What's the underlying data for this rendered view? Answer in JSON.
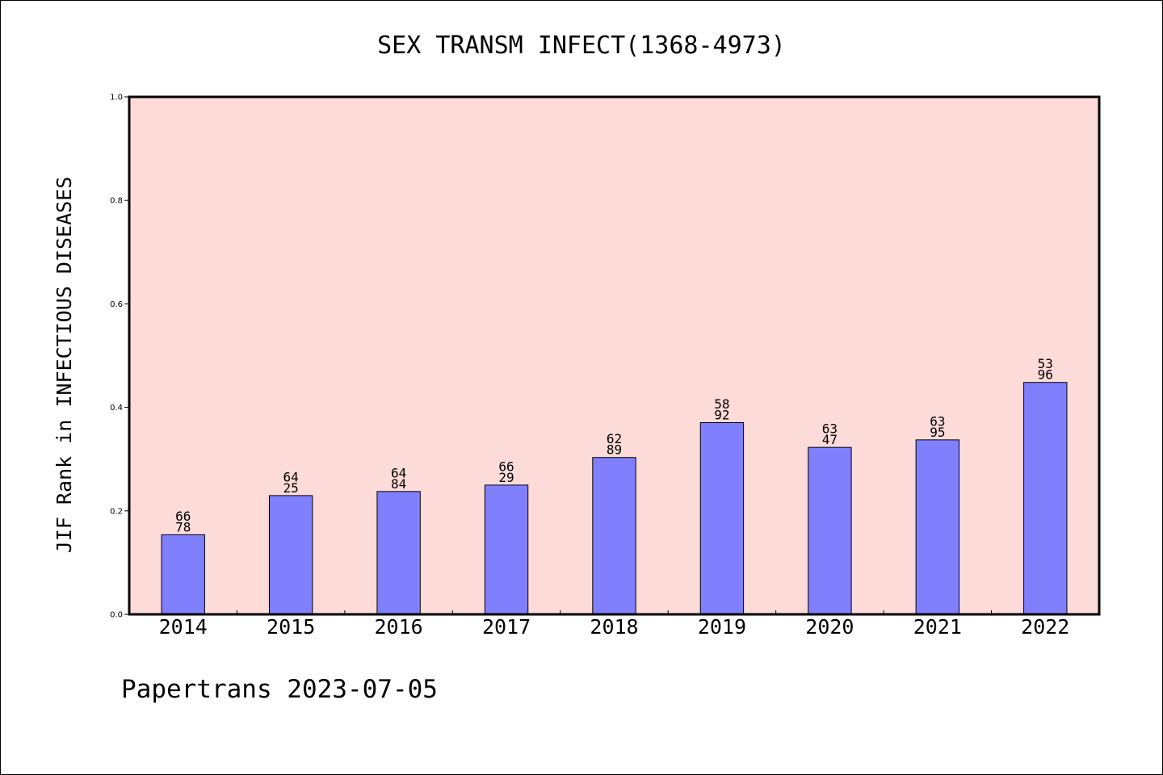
{
  "chart_data": {
    "type": "bar",
    "title": "SEX TRANSM INFECT(1368-4973)",
    "xlabel": "",
    "ylabel": "JIF Rank in INFECTIOUS DISEASES",
    "ylim": [
      0,
      1
    ],
    "yticks": [
      "0.0",
      "0.2",
      "0.4",
      "0.6",
      "0.8",
      "1.0"
    ],
    "categories": [
      "2014",
      "2015",
      "2016",
      "2017",
      "2018",
      "2019",
      "2020",
      "2021",
      "2022"
    ],
    "values": [
      0.1538,
      0.2295,
      0.2374,
      0.2498,
      0.3031,
      0.3705,
      0.3227,
      0.3372,
      0.4482
    ],
    "labels": [
      [
        "66",
        "78"
      ],
      [
        "64",
        "25"
      ],
      [
        "64",
        "84"
      ],
      [
        "66",
        "29"
      ],
      [
        "62",
        "89"
      ],
      [
        "58",
        "92"
      ],
      [
        "63",
        "47"
      ],
      [
        "63",
        "95"
      ],
      [
        "53",
        "96"
      ]
    ],
    "bar_color": "#8080ff",
    "plot_background": "#fddbd8",
    "grid": false
  },
  "footer": "Papertrans 2023-07-05"
}
